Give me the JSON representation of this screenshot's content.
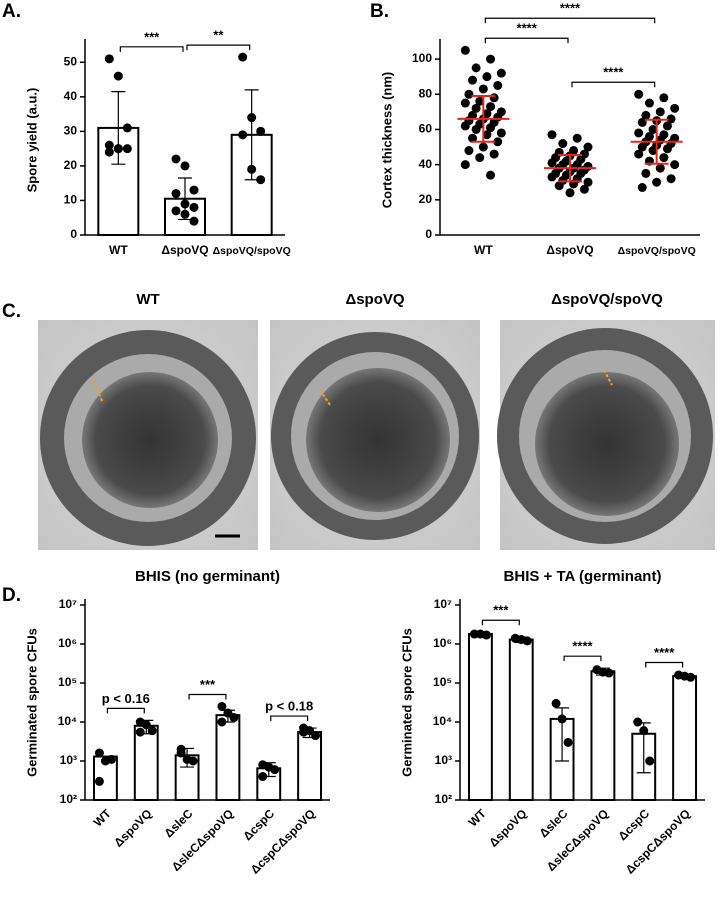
{
  "chart_data": [
    {
      "type": "bar",
      "panel": "A.",
      "ylabel": "Spore yield (a.u.)",
      "categories": [
        "WT",
        "ΔspoVQ",
        "ΔspoVQ/spoVQ"
      ],
      "values": [
        31,
        10.5,
        29
      ],
      "errors": [
        10.5,
        6,
        13
      ],
      "points": [
        [
          51,
          46,
          31,
          26,
          25,
          25,
          24,
          25
        ],
        [
          22,
          20,
          13,
          12,
          9,
          8,
          7,
          6,
          4
        ],
        [
          51.5,
          34,
          30,
          29,
          19,
          16
        ]
      ],
      "ylim": [
        0,
        55
      ],
      "yticks": [
        0,
        10,
        20,
        30,
        40,
        50
      ],
      "annotations": [
        {
          "text": "***",
          "from": 0,
          "to": 1
        },
        {
          "text": "**",
          "from": 1,
          "to": 2
        }
      ]
    },
    {
      "type": "dot",
      "panel": "B.",
      "ylabel": "Cortex thickness (nm)",
      "categories": [
        "WT",
        "ΔspoVQ",
        "ΔspoVQ/spoVQ"
      ],
      "means": [
        66,
        38,
        53
      ],
      "sds": [
        13,
        7.5,
        12.5
      ],
      "color": "#e8231c",
      "points": [
        [
          105,
          100,
          95,
          92,
          90,
          88,
          85,
          83,
          80,
          78,
          76,
          75,
          73,
          72,
          70,
          69,
          68,
          67,
          66,
          65,
          64,
          63,
          62,
          61,
          60,
          58,
          57,
          55,
          53,
          50,
          48,
          46,
          44,
          40,
          34
        ],
        [
          57,
          55,
          52,
          50,
          48,
          47,
          46,
          45,
          44,
          43,
          42,
          41,
          40,
          40,
          39,
          38,
          38,
          37,
          36,
          35,
          35,
          34,
          33,
          32,
          31,
          30,
          29,
          28,
          26,
          24
        ],
        [
          80,
          78,
          75,
          72,
          70,
          68,
          66,
          65,
          64,
          62,
          60,
          58,
          57,
          56,
          55,
          54,
          53,
          52,
          51,
          50,
          49,
          48,
          46,
          44,
          42,
          40,
          38,
          35,
          32,
          30,
          27
        ]
      ],
      "ylim": [
        0,
        108
      ],
      "yticks": [
        0,
        20,
        40,
        60,
        80,
        100
      ],
      "annotations": [
        {
          "text": "****",
          "from": 0,
          "to": 1
        },
        {
          "text": "****",
          "from": 1,
          "to": 2
        },
        {
          "text": "****",
          "from": 0,
          "to": 2
        }
      ]
    },
    {
      "type": "bar",
      "panel": "D.",
      "title": "BHIS (no germinant)",
      "ylabel": "Germinated spore CFUs",
      "yscale": "log",
      "categories": [
        "WT",
        "ΔspoVQ",
        "ΔsleC",
        "ΔsleCΔspoVQ",
        "ΔcspC",
        "ΔcspCΔspoVQ"
      ],
      "values": [
        1300,
        8000,
        1400,
        15000,
        650,
        5500
      ],
      "errors": [
        1300,
        3000,
        700,
        5000,
        250,
        1500
      ],
      "points": [
        [
          1600,
          1000,
          1100,
          300
        ],
        [
          10000,
          8500,
          6000,
          5500
        ],
        [
          2000,
          1100,
          1000,
          1600
        ],
        [
          25000,
          17000,
          13000,
          10000
        ],
        [
          800,
          700,
          600,
          400
        ],
        [
          7000,
          6000,
          4500,
          5500
        ]
      ],
      "ylim": [
        100,
        10000000
      ],
      "yticks": [
        {
          "value": 100,
          "label": "10²"
        },
        {
          "value": 1000,
          "label": "10³"
        },
        {
          "value": 10000,
          "label": "10⁴"
        },
        {
          "value": 100000,
          "label": "10⁵"
        },
        {
          "value": 1000000,
          "label": "10⁶"
        },
        {
          "value": 10000000,
          "label": "10⁷"
        }
      ],
      "annotations": [
        {
          "text": "p < 0.16",
          "from": 0,
          "to": 1
        },
        {
          "text": "***",
          "from": 2,
          "to": 3
        },
        {
          "text": "p < 0.18",
          "from": 4,
          "to": 5
        }
      ]
    },
    {
      "type": "bar",
      "title": "BHIS + TA (germinant)",
      "ylabel": "Germinated spore CFUs",
      "yscale": "log",
      "categories": [
        "WT",
        "ΔspoVQ",
        "ΔsleC",
        "ΔsleCΔspoVQ",
        "ΔcspC",
        "ΔcspCΔspoVQ"
      ],
      "values": [
        1800000,
        1300000,
        12000,
        200000,
        5000,
        150000
      ],
      "errors": [
        200000,
        200000,
        11000,
        40000,
        4500,
        15000
      ],
      "points": [
        [
          1800000,
          1800000,
          1700000
        ],
        [
          1400000,
          1300000,
          1200000
        ],
        [
          30000,
          12000,
          3000
        ],
        [
          220000,
          190000,
          180000
        ],
        [
          10000,
          6000,
          1000
        ],
        [
          160000,
          150000,
          140000
        ]
      ],
      "ylim": [
        100,
        10000000
      ],
      "yticks": [
        {
          "value": 100,
          "label": "10²"
        },
        {
          "value": 1000,
          "label": "10³"
        },
        {
          "value": 10000,
          "label": "10⁴"
        },
        {
          "value": 100000,
          "label": "10⁵"
        },
        {
          "value": 1000000,
          "label": "10⁶"
        },
        {
          "value": 10000000,
          "label": "10⁷"
        }
      ],
      "annotations": [
        {
          "text": "***",
          "from": 0,
          "to": 1
        },
        {
          "text": "****",
          "from": 2,
          "to": 3
        },
        {
          "text": "****",
          "from": 4,
          "to": 5
        }
      ]
    }
  ],
  "micrographs": {
    "panel": "C.",
    "titles": [
      "WT",
      "ΔspoVQ",
      "ΔspoVQ/spoVQ"
    ]
  }
}
